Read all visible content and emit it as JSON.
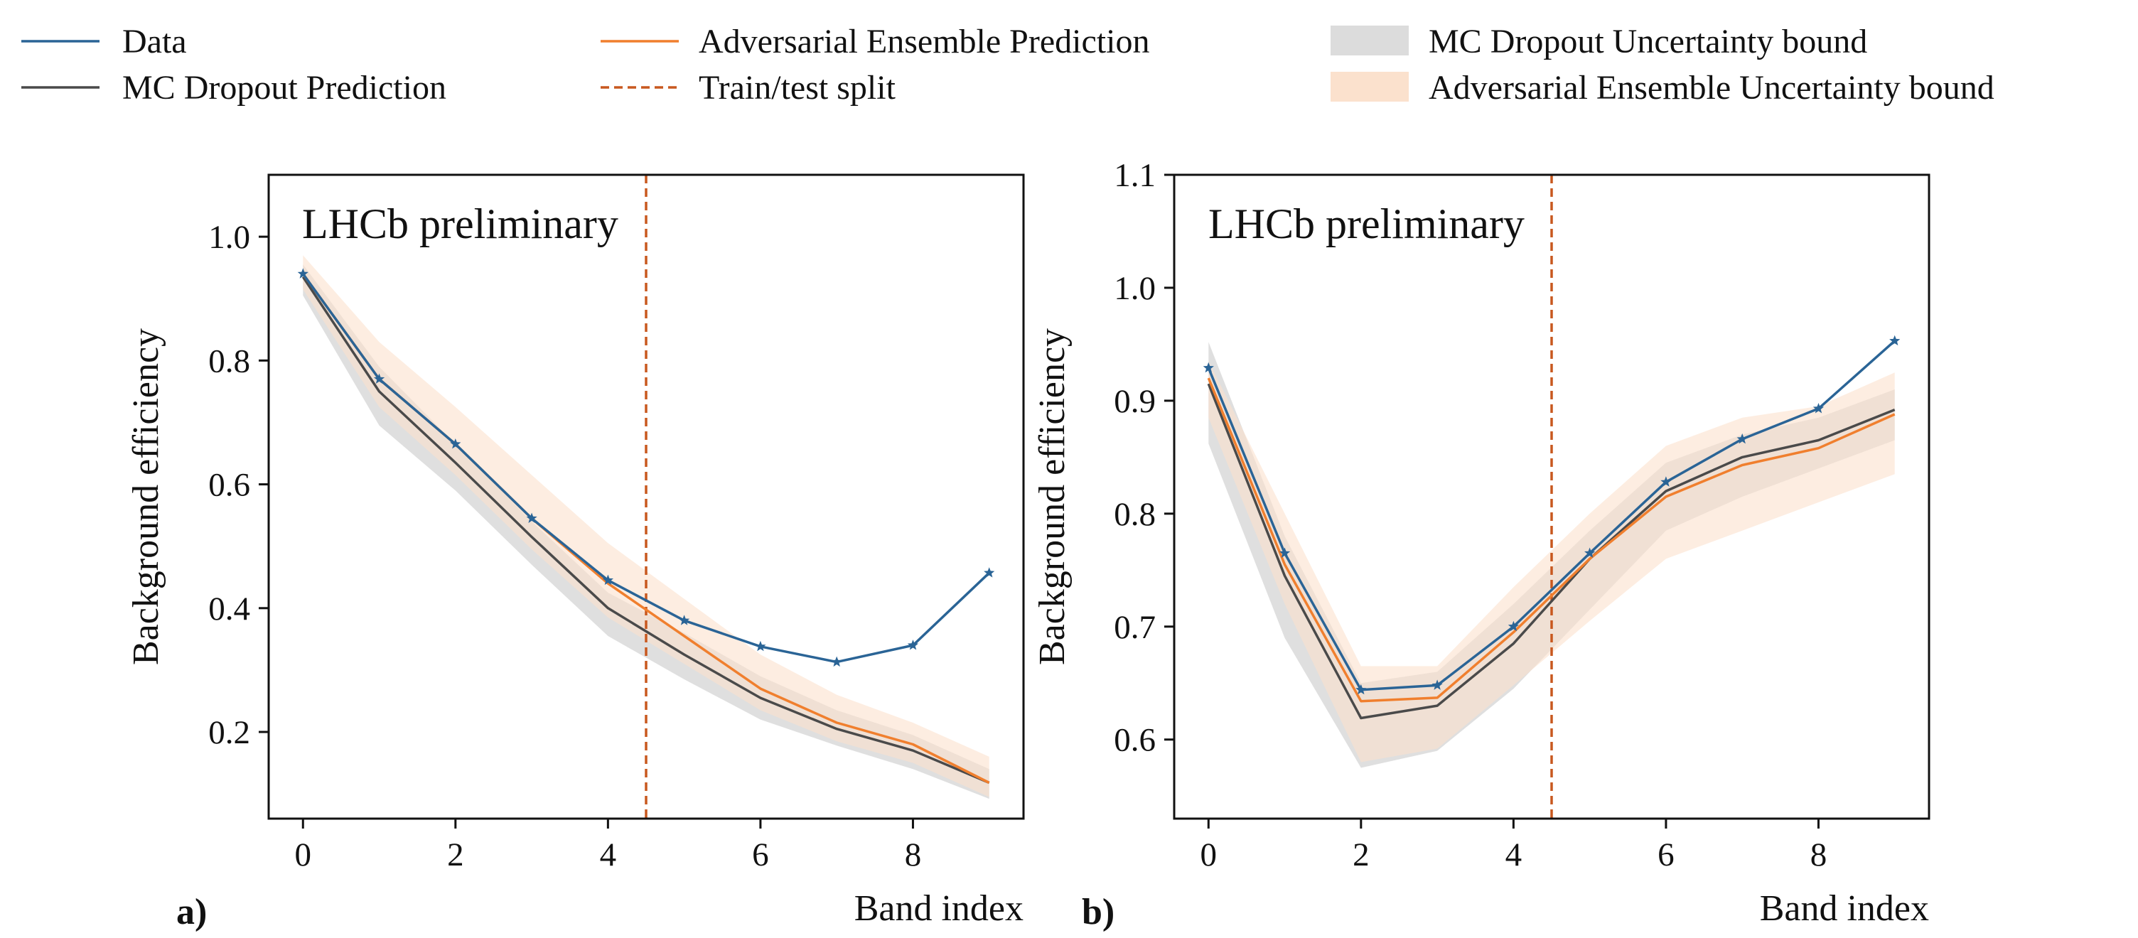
{
  "legend": [
    {
      "key": "data",
      "label": "Data",
      "kind": "line",
      "color": "#2a6496"
    },
    {
      "key": "mc_pred",
      "label": "MC Dropout Prediction",
      "kind": "line",
      "color": "#4a4a4a"
    },
    {
      "key": "adv_pred",
      "label": "Adversarial Ensemble Prediction",
      "kind": "line",
      "color": "#f07f2e"
    },
    {
      "key": "split",
      "label": "Train/test split",
      "kind": "dashed",
      "color": "#c8581f"
    },
    {
      "key": "mc_band",
      "label": "MC Dropout Uncertainty bound",
      "kind": "patch",
      "color": "#dcdcdc"
    },
    {
      "key": "adv_band",
      "label": "Adversarial Ensemble Uncertainty bound",
      "kind": "patch",
      "color": "#fbe1cd"
    }
  ],
  "chart_data": [
    {
      "type": "line",
      "panel_label": "a)",
      "annotation": "LHCb preliminary",
      "xlabel": "Band index",
      "ylabel": "Background efficiency",
      "xlim": [
        -0.45,
        9.45
      ],
      "ylim": [
        0.06,
        1.1
      ],
      "xticks": [
        0,
        2,
        4,
        6,
        8
      ],
      "yticks": [
        0.2,
        0.4,
        0.6,
        0.8,
        1.0
      ],
      "ytick_labels": [
        "0.2",
        "0.4",
        "0.6",
        "0.8",
        "1.0"
      ],
      "split_x": 4.5,
      "x": [
        0,
        1,
        2,
        3,
        4,
        5,
        6,
        7,
        8,
        9
      ],
      "series": [
        {
          "name": "Data",
          "values": [
            0.94,
            0.77,
            0.665,
            0.545,
            0.445,
            0.38,
            0.338,
            0.313,
            0.34,
            0.457
          ]
        },
        {
          "name": "MC Dropout Prediction",
          "values": [
            0.935,
            0.75,
            0.635,
            0.515,
            0.4,
            0.325,
            0.255,
            0.205,
            0.17,
            0.118
          ]
        },
        {
          "name": "Adversarial Ensemble Prediction",
          "values": [
            0.94,
            0.77,
            0.665,
            0.545,
            0.44,
            0.355,
            0.27,
            0.215,
            0.18,
            0.118
          ]
        }
      ],
      "bands": [
        {
          "name": "MC Dropout Uncertainty bound",
          "lower": [
            0.905,
            0.695,
            0.59,
            0.47,
            0.355,
            0.285,
            0.22,
            0.178,
            0.14,
            0.092
          ],
          "upper": [
            0.955,
            0.79,
            0.665,
            0.54,
            0.425,
            0.36,
            0.29,
            0.235,
            0.195,
            0.14
          ]
        },
        {
          "name": "Adversarial Ensemble Uncertainty bound",
          "lower": [
            0.915,
            0.725,
            0.615,
            0.495,
            0.385,
            0.31,
            0.235,
            0.185,
            0.15,
            0.095
          ],
          "upper": [
            0.97,
            0.83,
            0.725,
            0.615,
            0.505,
            0.415,
            0.325,
            0.26,
            0.215,
            0.16
          ]
        }
      ]
    },
    {
      "type": "line",
      "panel_label": "b)",
      "annotation": "LHCb preliminary",
      "xlabel": "Band index",
      "ylabel": "Background efficiency",
      "xlim": [
        -0.45,
        9.45
      ],
      "ylim": [
        0.53,
        1.1
      ],
      "xticks": [
        0,
        2,
        4,
        6,
        8
      ],
      "yticks": [
        0.6,
        0.7,
        0.8,
        0.9,
        1.0,
        1.1
      ],
      "ytick_labels": [
        "0.6",
        "0.7",
        "0.8",
        "0.9",
        "1.0",
        "1.1"
      ],
      "split_x": 4.5,
      "x": [
        0,
        1,
        2,
        3,
        4,
        5,
        6,
        7,
        8,
        9
      ],
      "series": [
        {
          "name": "Data",
          "values": [
            0.929,
            0.765,
            0.644,
            0.648,
            0.7,
            0.765,
            0.828,
            0.866,
            0.893,
            0.953
          ]
        },
        {
          "name": "MC Dropout Prediction",
          "values": [
            0.915,
            0.745,
            0.619,
            0.63,
            0.685,
            0.76,
            0.82,
            0.85,
            0.865,
            0.892
          ]
        },
        {
          "name": "Adversarial Ensemble Prediction",
          "values": [
            0.92,
            0.755,
            0.634,
            0.637,
            0.695,
            0.76,
            0.815,
            0.843,
            0.858,
            0.888
          ]
        }
      ],
      "bands": [
        {
          "name": "MC Dropout Uncertainty bound",
          "lower": [
            0.862,
            0.69,
            0.575,
            0.59,
            0.645,
            0.715,
            0.785,
            0.815,
            0.84,
            0.865
          ],
          "upper": [
            0.952,
            0.78,
            0.65,
            0.66,
            0.72,
            0.785,
            0.845,
            0.87,
            0.885,
            0.91
          ]
        },
        {
          "name": "Adversarial Ensemble Uncertainty bound",
          "lower": [
            0.885,
            0.72,
            0.58,
            0.592,
            0.648,
            0.705,
            0.76,
            0.785,
            0.81,
            0.835
          ],
          "upper": [
            0.935,
            0.8,
            0.665,
            0.665,
            0.735,
            0.8,
            0.86,
            0.885,
            0.895,
            0.925
          ]
        }
      ]
    }
  ]
}
